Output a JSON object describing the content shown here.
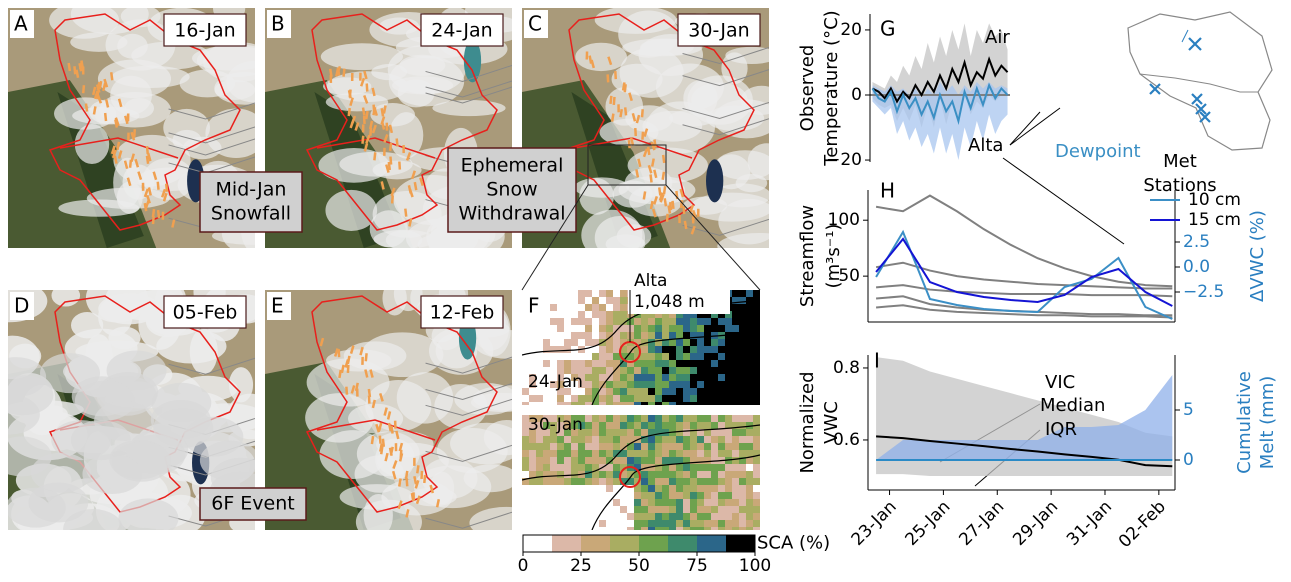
{
  "image_panels": [
    {
      "label": "A",
      "date": "16-Jan"
    },
    {
      "label": "B",
      "date": "24-Jan"
    },
    {
      "label": "C",
      "date": "30-Jan"
    },
    {
      "label": "D",
      "date": "05-Feb"
    },
    {
      "label": "E",
      "date": "12-Feb"
    }
  ],
  "callouts": [
    [
      "Mid-Jan",
      "Snowfall"
    ],
    [
      "Ephemeral",
      "Snow",
      "Withdrawal"
    ],
    [
      "6F Event"
    ]
  ],
  "panel_f": {
    "label": "F",
    "site": "Alta",
    "elevation": "1,048 m",
    "dates": [
      "24-Jan",
      "30-Jan"
    ]
  },
  "chart_data": [
    {
      "type": "line",
      "panel_label": "G",
      "ylabel": [
        "Observed",
        "Temperature (°C)"
      ],
      "x": [
        22.5,
        23,
        23.5,
        24,
        24.5,
        25,
        25.5,
        26,
        26.5,
        27,
        27.5,
        28,
        28.5,
        29,
        29.5,
        30,
        30.5,
        31,
        31.5,
        32,
        32.5,
        33,
        33.5
      ],
      "xlim": [
        22.3,
        33.7
      ],
      "ylim": [
        -20.6,
        24.9
      ],
      "yticks": [
        20,
        0,
        {
          "value": -20,
          "label": "−20"
        }
      ],
      "reference_line": 0,
      "bands": [
        {
          "color": "#c4c4c4",
          "upper": [
            4,
            3,
            2,
            6,
            4,
            9,
            6,
            12,
            8,
            16,
            10,
            18,
            12,
            20,
            14,
            22,
            12,
            20,
            16,
            22,
            18,
            20,
            14
          ],
          "lower": [
            -1,
            -3,
            -4,
            -3,
            -8,
            -4,
            -8,
            -3,
            -10,
            -3,
            -10,
            -1,
            -9,
            -2,
            -8,
            0,
            -6,
            -2,
            -4,
            0,
            -2,
            0,
            0
          ]
        },
        {
          "color": "#a8c6ef",
          "upper": [
            3,
            2,
            1,
            3,
            1,
            2,
            0,
            2,
            -1,
            2,
            0,
            4,
            1,
            3,
            0,
            3,
            1,
            4,
            2,
            4,
            2,
            3,
            2
          ],
          "lower": [
            -2,
            -4,
            -6,
            -4,
            -12,
            -8,
            -14,
            -10,
            -16,
            -12,
            -18,
            -10,
            -18,
            -12,
            -20,
            -10,
            -16,
            -8,
            -14,
            -6,
            -12,
            -8,
            -6
          ]
        }
      ],
      "series": [
        {
          "color": "#000000",
          "values": [
            2,
            1,
            -1,
            2,
            -2,
            1,
            -1,
            3,
            0,
            4,
            1,
            6,
            2,
            8,
            4,
            10,
            3,
            7,
            5,
            11,
            6,
            9,
            7
          ]
        },
        {
          "color": "#3a8fc4",
          "values": [
            2,
            -1,
            -2,
            1,
            -5,
            0,
            -4,
            -1,
            -6,
            -2,
            -7,
            0,
            -5,
            -2,
            -8,
            1,
            -4,
            2,
            -3,
            3,
            -1,
            2,
            0
          ]
        }
      ],
      "annotations": [
        {
          "text": "Air",
          "color": "#000000"
        },
        {
          "text": "Dewpoint",
          "color": "#3a8fc4"
        },
        {
          "text": "Alta",
          "color": "#000000"
        }
      ],
      "inset_label": [
        "Met",
        "Stations"
      ]
    },
    {
      "type": "line",
      "panel_label": "H",
      "ylabel": [
        "Streamflow",
        "(m³s⁻¹)"
      ],
      "y2label": [
        "ΔVWC (%)"
      ],
      "x": [
        22.5,
        23.5,
        24.5,
        25.5,
        26.5,
        27.5,
        28.5,
        29.5,
        30.5,
        31.5,
        32.5,
        33.5
      ],
      "xlim": [
        22.2,
        33.6
      ],
      "ylim": [
        9,
        127
      ],
      "yticks": [
        100,
        50
      ],
      "y2lim": [
        -5.5,
        7.7
      ],
      "y2ticks": [
        2.5,
        {
          "value": 0,
          "label": "0.0"
        },
        {
          "value": -2.5,
          "label": "−2.5"
        }
      ],
      "series": [
        {
          "color": "#808080",
          "values": [
            112,
            108,
            122,
            108,
            92,
            78,
            66,
            57,
            50,
            45,
            42,
            41
          ]
        },
        {
          "color": "#808080",
          "values": [
            58,
            62,
            55,
            50,
            47,
            45,
            43,
            42,
            41,
            40,
            39,
            39
          ]
        },
        {
          "color": "#808080",
          "values": [
            40,
            42,
            38,
            36,
            35,
            34,
            34,
            34,
            33,
            33,
            33,
            32
          ]
        },
        {
          "color": "#808080",
          "values": [
            30,
            32,
            25,
            22,
            20,
            19,
            18,
            17,
            16,
            16,
            15,
            15
          ]
        },
        {
          "color": "#808080",
          "values": [
            22,
            24,
            20,
            18,
            17,
            16,
            15,
            15,
            14,
            14,
            14,
            13
          ]
        },
        {
          "name": "10 cm",
          "color": "#3b8fc6",
          "axis": "y2",
          "values": [
            -1.0,
            3.5,
            -3.2,
            -3.8,
            -4.2,
            -4.4,
            -4.5,
            -2.0,
            -1.2,
            0.9,
            -4.0,
            -5.2
          ]
        },
        {
          "name": "15 cm",
          "color": "#1414d4",
          "axis": "y2",
          "values": [
            -0.5,
            2.8,
            -1.5,
            -2.5,
            -3.0,
            -3.3,
            -3.5,
            -2.8,
            -1.0,
            -0.2,
            -2.5,
            -3.9
          ]
        }
      ]
    },
    {
      "type": "line",
      "panel_label": "I",
      "ylabel": [
        "Normalized",
        "VWC"
      ],
      "y2label": [
        "Cumulative",
        "Melt (mm)"
      ],
      "x": [
        22.5,
        23.5,
        24.5,
        25.5,
        26.5,
        27.5,
        28.5,
        29.5,
        30.5,
        31.5,
        32.5,
        33.5
      ],
      "xlim": [
        22.2,
        33.6
      ],
      "ylim": [
        0.461,
        0.836
      ],
      "yticks": [
        0.8,
        0.6
      ],
      "y2lim": [
        -3,
        10.5
      ],
      "y2ticks": [
        5,
        0
      ],
      "xticks": [
        {
          "value": 23,
          "label": "23-Jan"
        },
        {
          "value": 25,
          "label": "25-Jan"
        },
        {
          "value": 27,
          "label": "27-Jan"
        },
        {
          "value": 29,
          "label": "29-Jan"
        },
        {
          "value": 31,
          "label": "31-Jan"
        },
        {
          "value": 33,
          "label": "02-Feb"
        }
      ],
      "bands": [
        {
          "color": "#c4c4c4",
          "upper": [
            0.83,
            0.82,
            0.79,
            0.77,
            0.75,
            0.73,
            0.71,
            0.69,
            0.67,
            0.65,
            0.62,
            0.61
          ],
          "lower": [
            0.505,
            0.505,
            0.5,
            0.5,
            0.5,
            0.5,
            0.5,
            0.5,
            0.5,
            0.5,
            0.5,
            0.5
          ]
        },
        {
          "color": "#8fb0ea",
          "axis": "y2",
          "upper": [
            0,
            2,
            2,
            2,
            2,
            2,
            2,
            3.3,
            3.3,
            3.5,
            5,
            8.5
          ],
          "lower": [
            0,
            0,
            0,
            0,
            0,
            0,
            0,
            0,
            0,
            0,
            0,
            0
          ]
        }
      ],
      "series": [
        {
          "color": "#000000",
          "values": [
            0.61,
            0.605,
            0.597,
            0.59,
            0.583,
            0.575,
            0.568,
            0.56,
            0.553,
            0.545,
            0.53,
            0.527
          ]
        },
        {
          "color": "#2a8ac6",
          "axis": "y2",
          "values": [
            0,
            0,
            0,
            0,
            0,
            0,
            0,
            0,
            0,
            0,
            0,
            0
          ]
        }
      ],
      "annotations": [
        {
          "text": "VIC",
          "color": "#000000"
        },
        {
          "text": "Median",
          "color": "#000000"
        },
        {
          "text": "IQR",
          "color": "#000000"
        }
      ]
    },
    {
      "type": "colorbar",
      "label": "SCA (%)",
      "xlim": [
        0,
        100
      ],
      "xticks": [
        0,
        25,
        50,
        75,
        100
      ],
      "colors": [
        "#ffffff",
        "#dcb8a8",
        "#c9a878",
        "#a9ad62",
        "#6ea24e",
        "#3e8a6c",
        "#2b6689",
        "#000000"
      ]
    }
  ]
}
